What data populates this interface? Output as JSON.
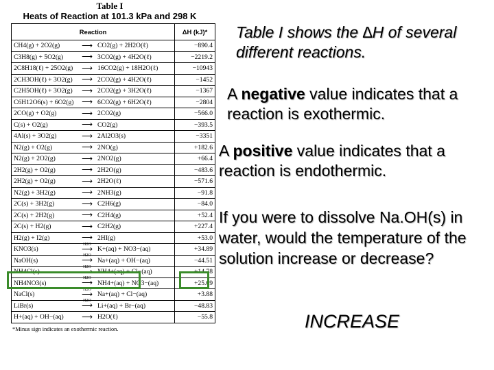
{
  "table": {
    "title": "Table I",
    "subtitle": "Heats of Reaction at 101.3 kPa and 298 K",
    "col_reaction": "Reaction",
    "col_dh": "ΔH (kJ)*",
    "footnote": "*Minus sign indicates an exothermic reaction.",
    "rows": [
      {
        "l": "CH4(g) + 2O2(g)",
        "a": "",
        "r": "CO2(g) + 2H2O(ℓ)",
        "dh": "−890.4"
      },
      {
        "l": "C3H8(g) + 5O2(g)",
        "a": "",
        "r": "3CO2(g) + 4H2O(ℓ)",
        "dh": "−2219.2"
      },
      {
        "l": "2C8H18(ℓ) + 25O2(g)",
        "a": "",
        "r": "16CO2(g) + 18H2O(ℓ)",
        "dh": "−10943"
      },
      {
        "l": "2CH3OH(ℓ) + 3O2(g)",
        "a": "",
        "r": "2CO2(g) + 4H2O(ℓ)",
        "dh": "−1452"
      },
      {
        "l": "C2H5OH(ℓ) + 3O2(g)",
        "a": "",
        "r": "2CO2(g) + 3H2O(ℓ)",
        "dh": "−1367"
      },
      {
        "l": "C6H12O6(s) + 6O2(g)",
        "a": "",
        "r": "6CO2(g) + 6H2O(ℓ)",
        "dh": "−2804"
      },
      {
        "l": "2CO(g) + O2(g)",
        "a": "",
        "r": "2CO2(g)",
        "dh": "−566.0"
      },
      {
        "l": "C(s) + O2(g)",
        "a": "",
        "r": "CO2(g)",
        "dh": "−393.5"
      },
      {
        "l": "4Al(s) + 3O2(g)",
        "a": "",
        "r": "2Al2O3(s)",
        "dh": "−3351"
      },
      {
        "l": "N2(g) + O2(g)",
        "a": "",
        "r": "2NO(g)",
        "dh": "+182.6"
      },
      {
        "l": "N2(g) + 2O2(g)",
        "a": "",
        "r": "2NO2(g)",
        "dh": "+66.4"
      },
      {
        "l": "2H2(g) + O2(g)",
        "a": "",
        "r": "2H2O(g)",
        "dh": "−483.6"
      },
      {
        "l": "2H2(g) + O2(g)",
        "a": "",
        "r": "2H2O(ℓ)",
        "dh": "−571.6"
      },
      {
        "l": "N2(g) + 3H2(g)",
        "a": "",
        "r": "2NH3(g)",
        "dh": "−91.8"
      },
      {
        "l": "2C(s) + 3H2(g)",
        "a": "",
        "r": "C2H6(g)",
        "dh": "−84.0"
      },
      {
        "l": "2C(s) + 2H2(g)",
        "a": "",
        "r": "C2H4(g)",
        "dh": "+52.4"
      },
      {
        "l": "2C(s) + H2(g)",
        "a": "",
        "r": "C2H2(g)",
        "dh": "+227.4"
      },
      {
        "l": "H2(g) + I2(g)",
        "a": "",
        "r": "2HI(g)",
        "dh": "+53.0"
      },
      {
        "l": "KNO3(s)",
        "a": "H2O",
        "r": "K+(aq) + NO3−(aq)",
        "dh": "+34.89"
      },
      {
        "l": "NaOH(s)",
        "a": "H2O",
        "r": "Na+(aq) + OH−(aq)",
        "dh": "−44.51"
      },
      {
        "l": "NH4Cl(s)",
        "a": "H2O",
        "r": "NH4+(aq) + Cl−(aq)",
        "dh": "+14.78"
      },
      {
        "l": "NH4NO3(s)",
        "a": "H2O",
        "r": "NH4+(aq) + NO3−(aq)",
        "dh": "+25.69"
      },
      {
        "l": "NaCl(s)",
        "a": "H2O",
        "r": "Na+(aq) + Cl−(aq)",
        "dh": "+3.88"
      },
      {
        "l": "LiBr(s)",
        "a": "H2O",
        "r": "Li+(aq) + Br−(aq)",
        "dh": "−48.83"
      },
      {
        "l": "H+(aq) + OH−(aq)",
        "a": "",
        "r": "H2O(ℓ)",
        "dh": "−55.8"
      }
    ]
  },
  "highlight_color": "#3a8b2a",
  "text": {
    "intro": "Table I shows the ∆H of several different reactions.",
    "neg_pre": "A ",
    "neg_word": "negative",
    "neg_post": " value indicates that a reaction is exothermic.",
    "pos_pre": "A ",
    "pos_word": "positive",
    "pos_post": " value indicates that a reaction is endothermic.",
    "question": "If you were to dissolve Na.OH(s) in water, would the temperature of the solution increase or decrease?",
    "answer": "INCREASE"
  }
}
